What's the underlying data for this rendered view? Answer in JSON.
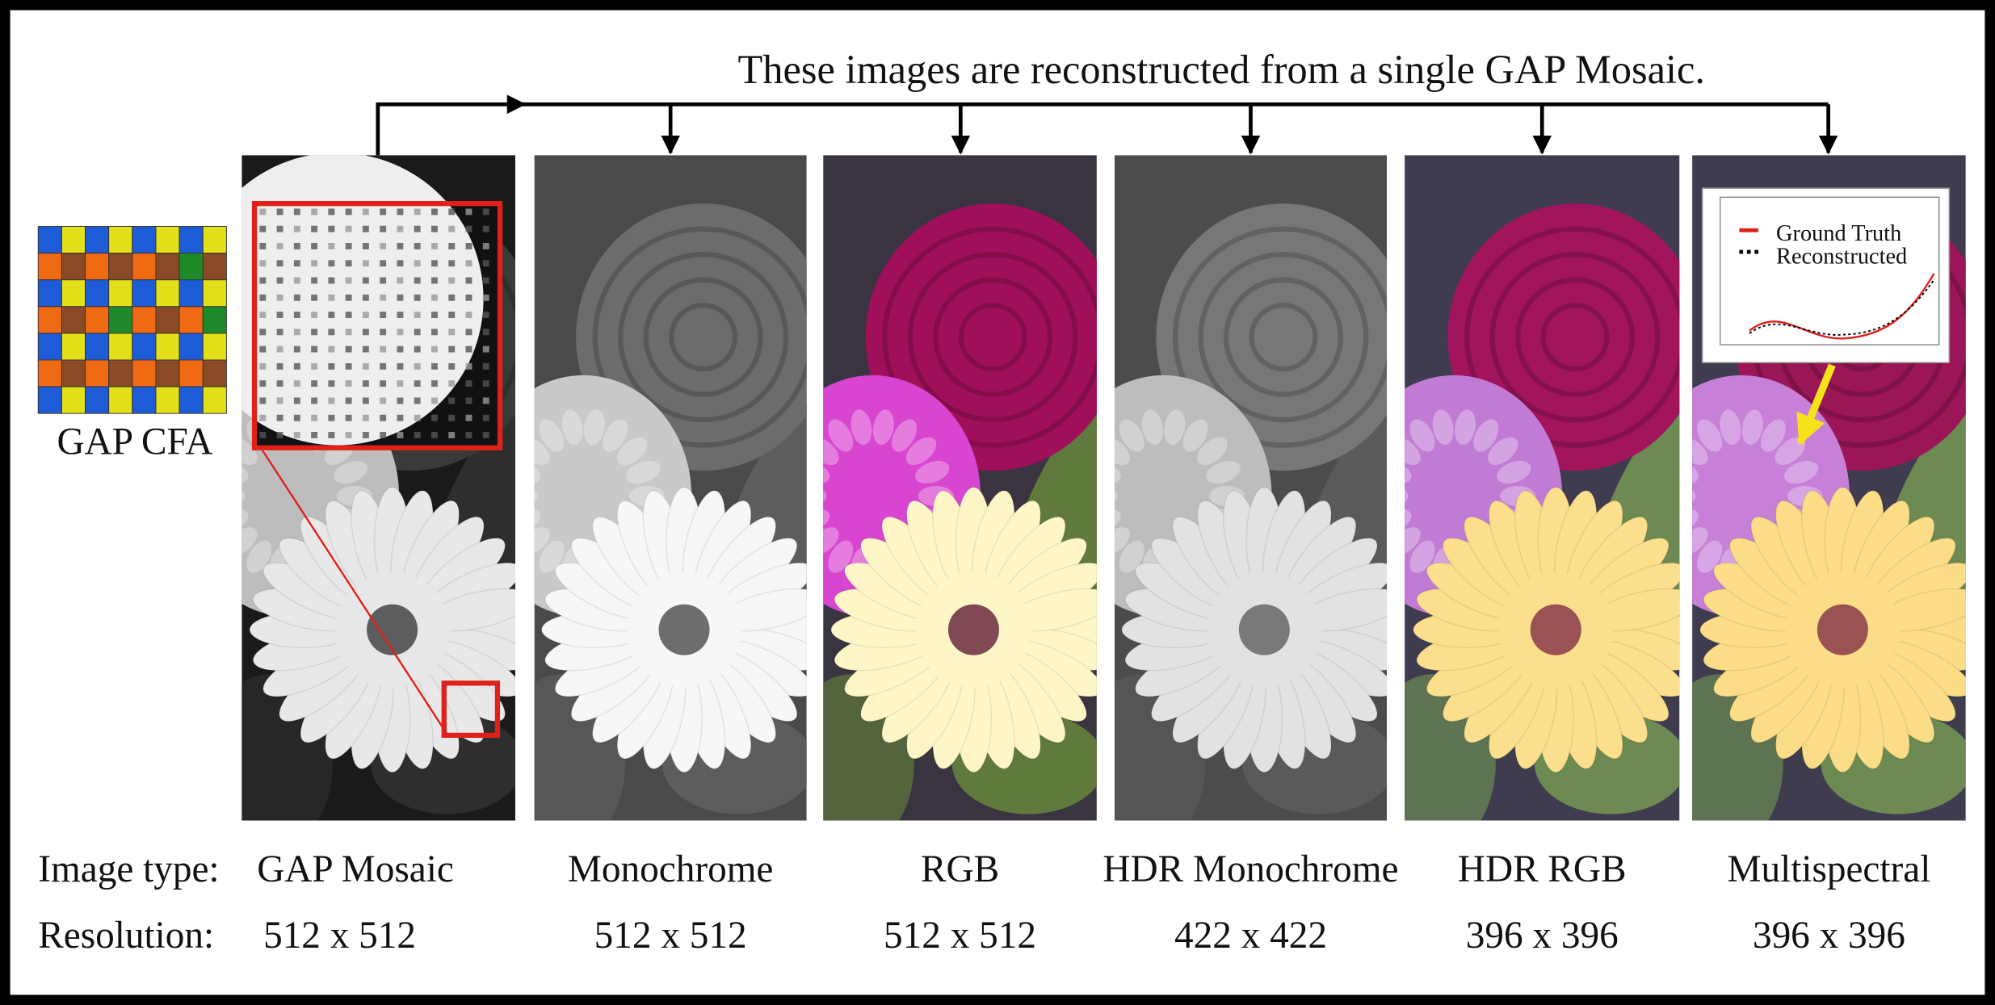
{
  "caption": "These images are reconstructed from a single GAP Mosaic.",
  "cfa_label": "GAP CFA",
  "row_labels": {
    "type": "Image type:",
    "resolution": "Resolution:"
  },
  "panels": [
    {
      "type": "GAP Mosaic",
      "resolution": "512 x 512"
    },
    {
      "type": "Monochrome",
      "resolution": "512 x 512"
    },
    {
      "type": "RGB",
      "resolution": "512 x 512"
    },
    {
      "type": "HDR Monochrome",
      "resolution": "422 x 422"
    },
    {
      "type": "HDR RGB",
      "resolution": "396 x 396"
    },
    {
      "type": "Multispectral",
      "resolution": "396 x 396"
    }
  ],
  "inset_legend": [
    "Ground Truth",
    "Reconstructed"
  ]
}
